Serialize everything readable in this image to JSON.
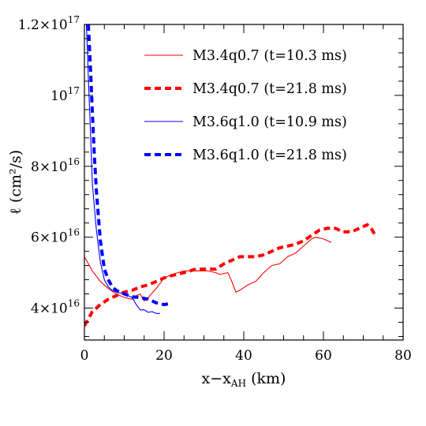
{
  "chart_data": {
    "type": "line",
    "title": "",
    "xlabel": "x−x",
    "xlabel_sub": "AH",
    "xlabel_unit": " (km)",
    "ylabel": "ℓ (cm²/s)",
    "xlim": [
      0,
      80
    ],
    "ylim": [
      3.1e+16,
      1.2e+17
    ],
    "grid": false,
    "legend_position": "top-right",
    "x_ticks": [
      {
        "value": 0,
        "label": "0"
      },
      {
        "value": 20,
        "label": "20"
      },
      {
        "value": 40,
        "label": "40"
      },
      {
        "value": 60,
        "label": "60"
      },
      {
        "value": 80,
        "label": "80"
      }
    ],
    "y_ticks": [
      {
        "value": 4e+16,
        "mant": "4×10",
        "exp": "16"
      },
      {
        "value": 6e+16,
        "mant": "6×10",
        "exp": "16"
      },
      {
        "value": 8e+16,
        "mant": "8×10",
        "exp": "16"
      },
      {
        "value": 1e+17,
        "mant": "10",
        "exp": "17"
      },
      {
        "value": 1.2e+17,
        "mant": "1.2×10",
        "exp": "17"
      }
    ],
    "series": [
      {
        "name": "M3.4q0.7 (t=10.3 ms)",
        "color": "#ff0000",
        "style": "thin-solid",
        "x": [
          0,
          2,
          4,
          6,
          8,
          10,
          12,
          13,
          14,
          15,
          16,
          18,
          20,
          22,
          25,
          28,
          31,
          33,
          34,
          36,
          37,
          38,
          39,
          41,
          43,
          45,
          47,
          49,
          51,
          53,
          55,
          57,
          58,
          60,
          62
        ],
        "y": [
          5.45e+16,
          5.05e+16,
          4.75e+16,
          4.55e+16,
          4.4e+16,
          4.3e+16,
          4.25e+16,
          4.35e+16,
          4.4e+16,
          4.2e+16,
          4.3e+16,
          4.55e+16,
          4.85e+16,
          4.95e+16,
          5.05e+16,
          5.05e+16,
          5.05e+16,
          5e+16,
          4.95e+16,
          5e+16,
          4.75e+16,
          4.45e+16,
          4.5e+16,
          4.65e+16,
          4.75e+16,
          5e+16,
          5.2e+16,
          5.25e+16,
          5.45e+16,
          5.55e+16,
          5.75e+16,
          5.95e+16,
          6e+16,
          5.95e+16,
          5.85e+16
        ]
      },
      {
        "name": "M3.4q0.7 (t=21.8 ms)",
        "color": "#ff0000",
        "style": "thick-dashed",
        "x": [
          0,
          2,
          4,
          6,
          8,
          10,
          12,
          14,
          16,
          18,
          20,
          22,
          25,
          28,
          31,
          33,
          35,
          37,
          39,
          41,
          43,
          45,
          47,
          49,
          51,
          53,
          55,
          57,
          59,
          61,
          63,
          65,
          67,
          69,
          71,
          72,
          73
        ],
        "y": [
          3.5e+16,
          3.9e+16,
          4.1e+16,
          4.25e+16,
          4.35e+16,
          4.45e+16,
          4.5e+16,
          4.6e+16,
          4.65e+16,
          4.75e+16,
          4.85e+16,
          4.92e+16,
          5e+16,
          5.1e+16,
          5.1e+16,
          5.1e+16,
          5.25e+16,
          5.35e+16,
          5.45e+16,
          5.45e+16,
          5.45e+16,
          5.5e+16,
          5.6e+16,
          5.7e+16,
          5.75e+16,
          5.8e+16,
          5.9e+16,
          6.05e+16,
          6.2e+16,
          6.25e+16,
          6.25e+16,
          6.15e+16,
          6.15e+16,
          6.25e+16,
          6.35e+16,
          6.25e+16,
          6.05e+16
        ]
      },
      {
        "name": "M3.6q1.0 (t=10.9 ms)",
        "color": "#0000ff",
        "style": "thin-solid",
        "x": [
          0.5,
          1,
          1.5,
          2,
          3,
          4,
          5,
          6,
          7,
          8,
          10,
          12,
          13,
          14,
          15,
          16,
          17,
          18,
          19
        ],
        "y": [
          1.2e+17,
          1.05e+17,
          9e+16,
          7.5e+16,
          6.2e+16,
          5.3e+16,
          4.8e+16,
          4.6e+16,
          4.5e+16,
          4.45e+16,
          4.4e+16,
          4.3e+16,
          4.1e+16,
          3.95e+16,
          3.95e+16,
          3.88e+16,
          3.9e+16,
          3.85e+16,
          3.85e+16
        ]
      },
      {
        "name": "M3.6q1.0 (t=21.8 ms)",
        "color": "#0000ff",
        "style": "thick-dashed",
        "x": [
          1,
          1.5,
          2,
          2.5,
          3,
          4,
          5,
          6,
          7,
          8,
          10,
          12,
          14,
          16,
          18,
          20,
          21
        ],
        "y": [
          1.2e+17,
          1.08e+17,
          9.5e+16,
          8.3e+16,
          7.3e+16,
          5.9e+16,
          5.1e+16,
          4.8e+16,
          4.6e+16,
          4.5e+16,
          4.4e+16,
          4.32e+16,
          4.3e+16,
          4.25e+16,
          4.15e+16,
          4.1e+16,
          4.12e+16
        ]
      }
    ]
  }
}
